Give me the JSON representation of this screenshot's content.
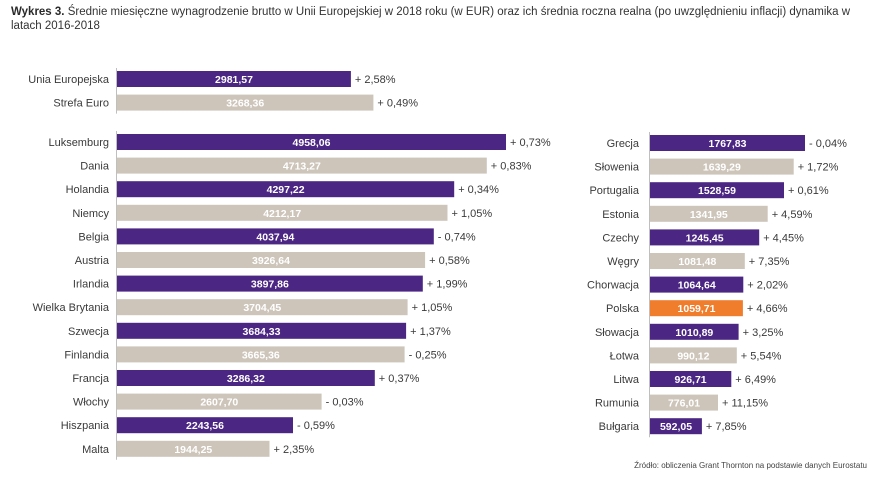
{
  "header": {
    "label": "Wykres 3.",
    "text": "Średnie miesięczne wynagrodzenie brutto w Unii Europejskiej w 2018 roku (w EUR) oraz ich średnia roczna realna (po uwzględnieniu inflacji) dynamika w latach 2016-2018"
  },
  "source": "Źródło: obliczenia Grant Thornton na podstawie danych Eurostatu",
  "colors": {
    "purple": "#4b2683",
    "beige": "#cdc5ba",
    "orange": "#ef7d2b"
  },
  "chart_data": [
    {
      "type": "bar",
      "orientation": "horizontal",
      "name": "aggregates",
      "categories": [
        "Unia Europejska",
        "Strefa Euro"
      ],
      "values": [
        2981.57,
        3268.36
      ],
      "value_labels": [
        "2981,57",
        "3268,36"
      ],
      "dynamics": [
        "+ 2,58%",
        "+ 0,49%"
      ],
      "colors": [
        "purple",
        "beige"
      ]
    },
    {
      "type": "bar",
      "orientation": "horizontal",
      "name": "left",
      "categories": [
        "Luksemburg",
        "Dania",
        "Holandia",
        "Niemcy",
        "Belgia",
        "Austria",
        "Irlandia",
        "Wielka Brytania",
        "Szwecja",
        "Finlandia",
        "Francja",
        "Włochy",
        "Hiszpania",
        "Malta"
      ],
      "values": [
        4958.06,
        4713.27,
        4297.22,
        4212.17,
        4037.94,
        3926.64,
        3897.86,
        3704.45,
        3684.33,
        3665.36,
        3286.32,
        2607.7,
        2243.56,
        1944.25
      ],
      "value_labels": [
        "4958,06",
        "4713,27",
        "4297,22",
        "4212,17",
        "4037,94",
        "3926,64",
        "3897,86",
        "3704,45",
        "3684,33",
        "3665,36",
        "3286,32",
        "2607,70",
        "2243,56",
        "1944,25"
      ],
      "dynamics": [
        "+ 0,73%",
        "+ 0,83%",
        "+ 0,34%",
        "+ 1,05%",
        "- 0,74%",
        "+ 0,58%",
        "+ 1,99%",
        "+ 1,05%",
        "+ 1,37%",
        "- 0,25%",
        "+ 0,37%",
        "- 0,03%",
        "- 0,59%",
        "+ 2,35%"
      ],
      "colors": [
        "purple",
        "beige",
        "purple",
        "beige",
        "purple",
        "beige",
        "purple",
        "beige",
        "purple",
        "beige",
        "purple",
        "beige",
        "purple",
        "beige"
      ]
    },
    {
      "type": "bar",
      "orientation": "horizontal",
      "name": "right",
      "categories": [
        "Grecja",
        "Słowenia",
        "Portugalia",
        "Estonia",
        "Czechy",
        "Węgry",
        "Chorwacja",
        "Polska",
        "Słowacja",
        "Łotwa",
        "Litwa",
        "Rumunia",
        "Bułgaria"
      ],
      "values": [
        1767.83,
        1639.29,
        1528.59,
        1341.95,
        1245.45,
        1081.48,
        1064.64,
        1059.71,
        1010.89,
        990.12,
        926.71,
        776.01,
        592.05
      ],
      "value_labels": [
        "1767,83",
        "1639,29",
        "1528,59",
        "1341,95",
        "1245,45",
        "1081,48",
        "1064,64",
        "1059,71",
        "1010,89",
        "990,12",
        "926,71",
        "776,01",
        "592,05"
      ],
      "dynamics": [
        "- 0,04%",
        "+ 1,72%",
        "+ 0,61%",
        "+ 4,59%",
        "+ 4,45%",
        "+ 7,35%",
        "+ 2,02%",
        "+ 4,66%",
        "+ 3,25%",
        "+ 5,54%",
        "+ 6,49%",
        "+ 11,15%",
        "+ 7,85%"
      ],
      "colors": [
        "purple",
        "beige",
        "purple",
        "beige",
        "purple",
        "beige",
        "purple",
        "orange",
        "purple",
        "beige",
        "purple",
        "beige",
        "purple"
      ]
    }
  ]
}
